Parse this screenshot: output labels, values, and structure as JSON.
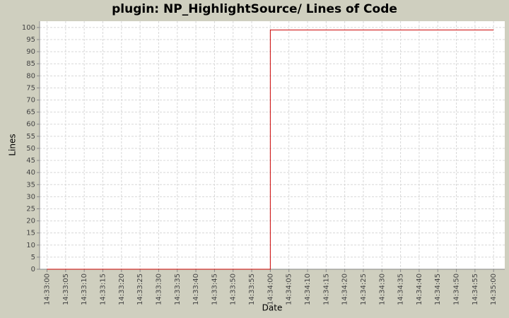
{
  "chart_data": {
    "type": "line",
    "step": true,
    "title": "plugin: NP_HighlightSource/ Lines of Code",
    "xlabel": "Date",
    "ylabel": "Lines",
    "x": [
      "14:33:00",
      "14:34:00",
      "14:35:00"
    ],
    "values": [
      0,
      99,
      99
    ],
    "color": "#cc0000",
    "xlim": [
      "14:32:58",
      "14:35:03"
    ],
    "xticks": [
      "14:33:00",
      "14:33:05",
      "14:33:10",
      "14:33:15",
      "14:33:20",
      "14:33:25",
      "14:33:30",
      "14:33:35",
      "14:33:40",
      "14:33:45",
      "14:33:50",
      "14:33:55",
      "14:34:00",
      "14:34:05",
      "14:34:10",
      "14:34:15",
      "14:34:20",
      "14:34:25",
      "14:34:30",
      "14:34:35",
      "14:34:40",
      "14:34:45",
      "14:34:50",
      "14:34:55",
      "14:35:00"
    ],
    "ylim": [
      0,
      102.6
    ],
    "yticks": [
      0,
      5,
      10,
      15,
      20,
      25,
      30,
      35,
      40,
      45,
      50,
      55,
      60,
      65,
      70,
      75,
      80,
      85,
      90,
      95,
      100
    ],
    "grid": true
  }
}
